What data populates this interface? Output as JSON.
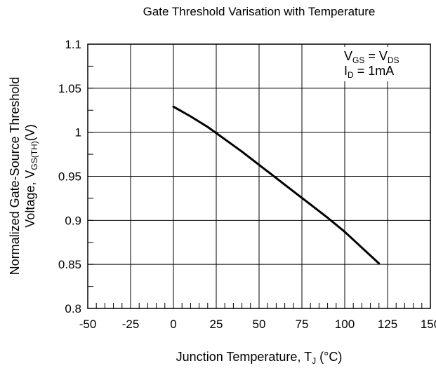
{
  "chart_data": {
    "type": "line",
    "title": "Gate Threshold Varisation with Temperature",
    "xlabel": {
      "main": "Junction Temperature, T",
      "sub": "J",
      "tail": " (°C)"
    },
    "ylabel": {
      "line1": "Normalized Gate-Source Threshold",
      "line2_main": "Voltage, V",
      "line2_sub": "GS(TH)",
      "line2_tail": "(V)"
    },
    "xlim": [
      -50,
      150
    ],
    "ylim": [
      0.8,
      1.1
    ],
    "x_ticks": [
      -50,
      -25,
      0,
      25,
      50,
      75,
      100,
      125,
      150
    ],
    "x_tick_labels": [
      "-50",
      "-25",
      "0",
      "25",
      "50",
      "75",
      "100",
      "125",
      "150"
    ],
    "y_ticks": [
      0.8,
      0.85,
      0.9,
      0.95,
      1.0,
      1.05,
      1.1
    ],
    "y_tick_labels": [
      "0.8",
      "0.85",
      "0.9",
      "0.95",
      "1",
      "1.05",
      "1.1"
    ],
    "grid": true,
    "x_minor_step": 5,
    "y_minor_step": 0.025,
    "legend_placement": "top-right",
    "annotation": {
      "line1": {
        "a": "V",
        "a_sub": "GS",
        "mid": " = V",
        "b_sub": "DS"
      },
      "line2": {
        "a": "I",
        "a_sub": "D",
        "tail": " = 1mA"
      }
    },
    "series": [
      {
        "x": [
          0,
          10,
          20,
          25,
          30,
          40,
          50,
          60,
          70,
          80,
          90,
          100,
          110,
          120
        ],
        "y": [
          1.029,
          1.018,
          1.006,
          0.999,
          0.992,
          0.978,
          0.963,
          0.948,
          0.933,
          0.918,
          0.903,
          0.887,
          0.869,
          0.851
        ]
      }
    ]
  }
}
